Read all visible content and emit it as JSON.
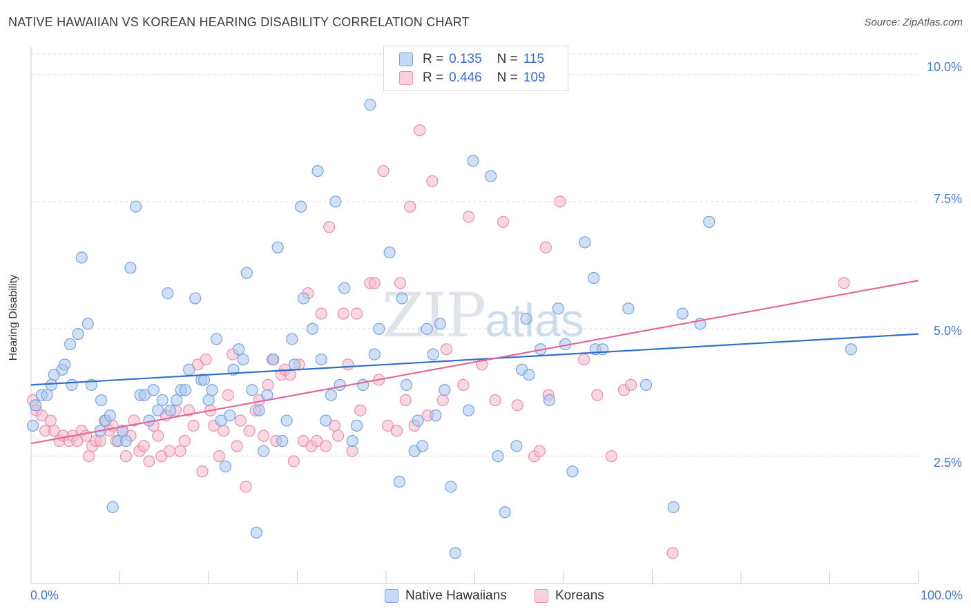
{
  "header": {
    "title": "NATIVE HAWAIIAN VS KOREAN HEARING DISABILITY CORRELATION CHART",
    "source": "Source: ZipAtlas.com"
  },
  "watermark": {
    "zip": "ZIP",
    "atlas": "atlas"
  },
  "legend": {
    "r_label": "R =",
    "n_label": "N =",
    "rows": [
      {
        "r": "0.135",
        "n": "115"
      },
      {
        "r": "0.446",
        "n": "109"
      }
    ]
  },
  "colors": {
    "blue_fill": "#a9c6ef",
    "blue_stroke": "#7aa3dc",
    "blue_line": "#2f6fca",
    "pink_fill": "#f6b8cb",
    "pink_stroke": "#ea8fae",
    "pink_line": "#e0689a",
    "grid": "#dddddd",
    "tick_text": "#4a78c2"
  },
  "chart_data": {
    "type": "scatter",
    "title": "NATIVE HAWAIIAN VS KOREAN HEARING DISABILITY CORRELATION CHART",
    "xlabel": "",
    "ylabel": "Hearing Disability",
    "xlim": [
      0,
      100
    ],
    "ylim": [
      0,
      10.4
    ],
    "x_tick_labels": [
      "0.0%",
      "100.0%"
    ],
    "y_ticks": [
      2.5,
      5.0,
      7.5,
      10.0
    ],
    "y_tick_labels": [
      "2.5%",
      "5.0%",
      "7.5%",
      "10.0%"
    ],
    "grid": "horizontal dashed",
    "legend_position": "bottom-center",
    "series": [
      {
        "name": "Native Hawaiians",
        "color": "#a9c6ef",
        "r": 0.135,
        "n": 115,
        "trend": {
          "x": [
            0,
            100
          ],
          "y": [
            3.9,
            4.9
          ]
        },
        "points": [
          [
            0.2,
            3.1
          ],
          [
            0.5,
            3.5
          ],
          [
            1.2,
            3.7
          ],
          [
            1.8,
            3.7
          ],
          [
            2.3,
            3.9
          ],
          [
            2.6,
            4.1
          ],
          [
            3.5,
            4.2
          ],
          [
            3.8,
            4.3
          ],
          [
            4.4,
            4.7
          ],
          [
            4.6,
            3.9
          ],
          [
            5.3,
            4.9
          ],
          [
            5.7,
            6.4
          ],
          [
            6.4,
            5.1
          ],
          [
            6.8,
            3.9
          ],
          [
            7.8,
            3.0
          ],
          [
            7.9,
            3.6
          ],
          [
            8.4,
            3.2
          ],
          [
            8.9,
            3.3
          ],
          [
            9.2,
            1.5
          ],
          [
            9.8,
            2.8
          ],
          [
            10.3,
            3.0
          ],
          [
            10.7,
            2.8
          ],
          [
            11.2,
            6.2
          ],
          [
            11.8,
            7.4
          ],
          [
            12.3,
            3.7
          ],
          [
            12.8,
            3.7
          ],
          [
            13.3,
            3.2
          ],
          [
            13.8,
            3.8
          ],
          [
            14.3,
            3.4
          ],
          [
            14.8,
            3.6
          ],
          [
            15.4,
            5.7
          ],
          [
            15.7,
            3.4
          ],
          [
            16.4,
            3.6
          ],
          [
            16.9,
            3.8
          ],
          [
            17.4,
            3.8
          ],
          [
            17.8,
            4.2
          ],
          [
            18.5,
            5.6
          ],
          [
            19.2,
            4.0
          ],
          [
            19.5,
            4.0
          ],
          [
            20.0,
            3.6
          ],
          [
            20.4,
            3.8
          ],
          [
            20.9,
            4.8
          ],
          [
            21.4,
            3.2
          ],
          [
            21.9,
            2.3
          ],
          [
            22.4,
            3.3
          ],
          [
            22.8,
            4.2
          ],
          [
            23.4,
            4.6
          ],
          [
            23.9,
            4.4
          ],
          [
            24.3,
            6.1
          ],
          [
            24.9,
            3.8
          ],
          [
            25.4,
            1.0
          ],
          [
            25.7,
            3.4
          ],
          [
            26.2,
            2.6
          ],
          [
            26.6,
            3.7
          ],
          [
            27.3,
            4.4
          ],
          [
            27.8,
            6.6
          ],
          [
            28.3,
            2.8
          ],
          [
            28.8,
            3.2
          ],
          [
            29.4,
            4.8
          ],
          [
            29.7,
            4.3
          ],
          [
            30.4,
            7.4
          ],
          [
            30.7,
            5.6
          ],
          [
            31.7,
            5.0
          ],
          [
            32.3,
            8.1
          ],
          [
            32.7,
            4.4
          ],
          [
            33.2,
            3.2
          ],
          [
            33.8,
            3.7
          ],
          [
            34.3,
            7.5
          ],
          [
            34.8,
            3.9
          ],
          [
            35.3,
            5.8
          ],
          [
            36.2,
            2.8
          ],
          [
            36.7,
            3.1
          ],
          [
            37.4,
            3.9
          ],
          [
            38.2,
            9.4
          ],
          [
            38.7,
            4.5
          ],
          [
            39.2,
            5.0
          ],
          [
            40.4,
            6.5
          ],
          [
            41.5,
            2.0
          ],
          [
            41.8,
            5.6
          ],
          [
            42.3,
            3.9
          ],
          [
            43.2,
            2.6
          ],
          [
            43.6,
            3.2
          ],
          [
            44.1,
            2.7
          ],
          [
            44.6,
            5.0
          ],
          [
            45.3,
            4.5
          ],
          [
            45.6,
            3.3
          ],
          [
            46.1,
            5.1
          ],
          [
            46.6,
            3.8
          ],
          [
            47.3,
            1.9
          ],
          [
            47.8,
            0.6
          ],
          [
            49.3,
            3.4
          ],
          [
            49.8,
            8.3
          ],
          [
            51.8,
            8.0
          ],
          [
            52.6,
            2.5
          ],
          [
            53.4,
            1.4
          ],
          [
            54.7,
            2.7
          ],
          [
            55.3,
            4.2
          ],
          [
            55.8,
            5.2
          ],
          [
            56.1,
            4.1
          ],
          [
            57.4,
            4.6
          ],
          [
            58.4,
            3.6
          ],
          [
            59.4,
            5.4
          ],
          [
            60.2,
            4.7
          ],
          [
            61.0,
            2.2
          ],
          [
            62.4,
            6.7
          ],
          [
            63.4,
            6.0
          ],
          [
            63.6,
            4.6
          ],
          [
            64.4,
            4.6
          ],
          [
            67.3,
            5.4
          ],
          [
            69.3,
            3.9
          ],
          [
            72.4,
            1.5
          ],
          [
            73.4,
            5.3
          ],
          [
            75.4,
            5.1
          ],
          [
            76.4,
            7.1
          ],
          [
            92.4,
            4.6
          ]
        ]
      },
      {
        "name": "Koreans",
        "color": "#f6b8cb",
        "r": 0.446,
        "n": 109,
        "trend": {
          "x": [
            0,
            100
          ],
          "y": [
            2.75,
            5.95
          ]
        },
        "points": [
          [
            0.2,
            3.6
          ],
          [
            0.6,
            3.4
          ],
          [
            1.2,
            3.3
          ],
          [
            1.6,
            3.0
          ],
          [
            2.2,
            3.2
          ],
          [
            2.6,
            3.0
          ],
          [
            3.2,
            2.8
          ],
          [
            3.6,
            2.9
          ],
          [
            4.3,
            2.8
          ],
          [
            4.7,
            2.9
          ],
          [
            5.2,
            2.8
          ],
          [
            5.7,
            3.0
          ],
          [
            6.2,
            2.9
          ],
          [
            6.5,
            2.5
          ],
          [
            6.9,
            2.7
          ],
          [
            7.3,
            2.8
          ],
          [
            7.8,
            2.8
          ],
          [
            8.3,
            3.2
          ],
          [
            8.8,
            3.0
          ],
          [
            9.2,
            3.1
          ],
          [
            9.6,
            2.8
          ],
          [
            10.3,
            3.0
          ],
          [
            10.7,
            2.5
          ],
          [
            11.2,
            2.9
          ],
          [
            11.6,
            3.2
          ],
          [
            12.2,
            2.6
          ],
          [
            12.7,
            2.7
          ],
          [
            13.3,
            2.4
          ],
          [
            13.8,
            3.1
          ],
          [
            14.3,
            2.9
          ],
          [
            14.7,
            2.5
          ],
          [
            15.2,
            3.3
          ],
          [
            15.6,
            2.6
          ],
          [
            16.3,
            3.4
          ],
          [
            16.8,
            2.6
          ],
          [
            17.3,
            2.8
          ],
          [
            17.8,
            3.4
          ],
          [
            18.3,
            3.1
          ],
          [
            18.8,
            4.3
          ],
          [
            19.3,
            2.2
          ],
          [
            19.7,
            4.4
          ],
          [
            20.2,
            3.4
          ],
          [
            20.6,
            3.1
          ],
          [
            21.2,
            2.5
          ],
          [
            21.7,
            3.0
          ],
          [
            22.2,
            3.7
          ],
          [
            22.7,
            4.5
          ],
          [
            23.2,
            2.7
          ],
          [
            23.6,
            3.2
          ],
          [
            24.2,
            1.9
          ],
          [
            24.6,
            3.0
          ],
          [
            25.3,
            3.4
          ],
          [
            25.7,
            3.6
          ],
          [
            26.2,
            2.9
          ],
          [
            26.7,
            3.9
          ],
          [
            27.2,
            4.4
          ],
          [
            27.6,
            2.8
          ],
          [
            28.2,
            4.1
          ],
          [
            28.6,
            4.2
          ],
          [
            29.2,
            4.1
          ],
          [
            29.6,
            2.4
          ],
          [
            30.2,
            4.3
          ],
          [
            30.7,
            2.8
          ],
          [
            31.2,
            5.7
          ],
          [
            31.6,
            2.7
          ],
          [
            32.2,
            2.8
          ],
          [
            32.7,
            5.3
          ],
          [
            33.2,
            2.7
          ],
          [
            33.6,
            7.0
          ],
          [
            34.2,
            3.1
          ],
          [
            34.6,
            2.9
          ],
          [
            35.2,
            5.3
          ],
          [
            35.7,
            4.3
          ],
          [
            36.2,
            2.6
          ],
          [
            36.7,
            5.3
          ],
          [
            37.1,
            3.4
          ],
          [
            38.2,
            5.9
          ],
          [
            38.7,
            5.9
          ],
          [
            39.2,
            4.0
          ],
          [
            39.7,
            8.1
          ],
          [
            40.2,
            3.1
          ],
          [
            41.2,
            3.0
          ],
          [
            41.6,
            5.9
          ],
          [
            42.2,
            3.6
          ],
          [
            42.7,
            7.4
          ],
          [
            43.2,
            3.1
          ],
          [
            43.8,
            8.9
          ],
          [
            44.7,
            3.3
          ],
          [
            45.2,
            7.9
          ],
          [
            46.4,
            3.6
          ],
          [
            46.8,
            4.6
          ],
          [
            48.7,
            3.9
          ],
          [
            49.3,
            7.2
          ],
          [
            50.8,
            4.3
          ],
          [
            52.3,
            3.6
          ],
          [
            53.2,
            7.1
          ],
          [
            54.8,
            3.5
          ],
          [
            56.7,
            2.5
          ],
          [
            57.3,
            2.6
          ],
          [
            58.3,
            3.7
          ],
          [
            59.6,
            7.5
          ],
          [
            62.3,
            4.4
          ],
          [
            63.8,
            3.7
          ],
          [
            65.4,
            2.5
          ],
          [
            66.8,
            3.8
          ],
          [
            67.6,
            3.9
          ],
          [
            72.3,
            0.6
          ],
          [
            91.6,
            5.9
          ],
          [
            58.0,
            6.6
          ]
        ]
      }
    ]
  },
  "bottom_legend": [
    "Native Hawaiians",
    "Koreans"
  ]
}
